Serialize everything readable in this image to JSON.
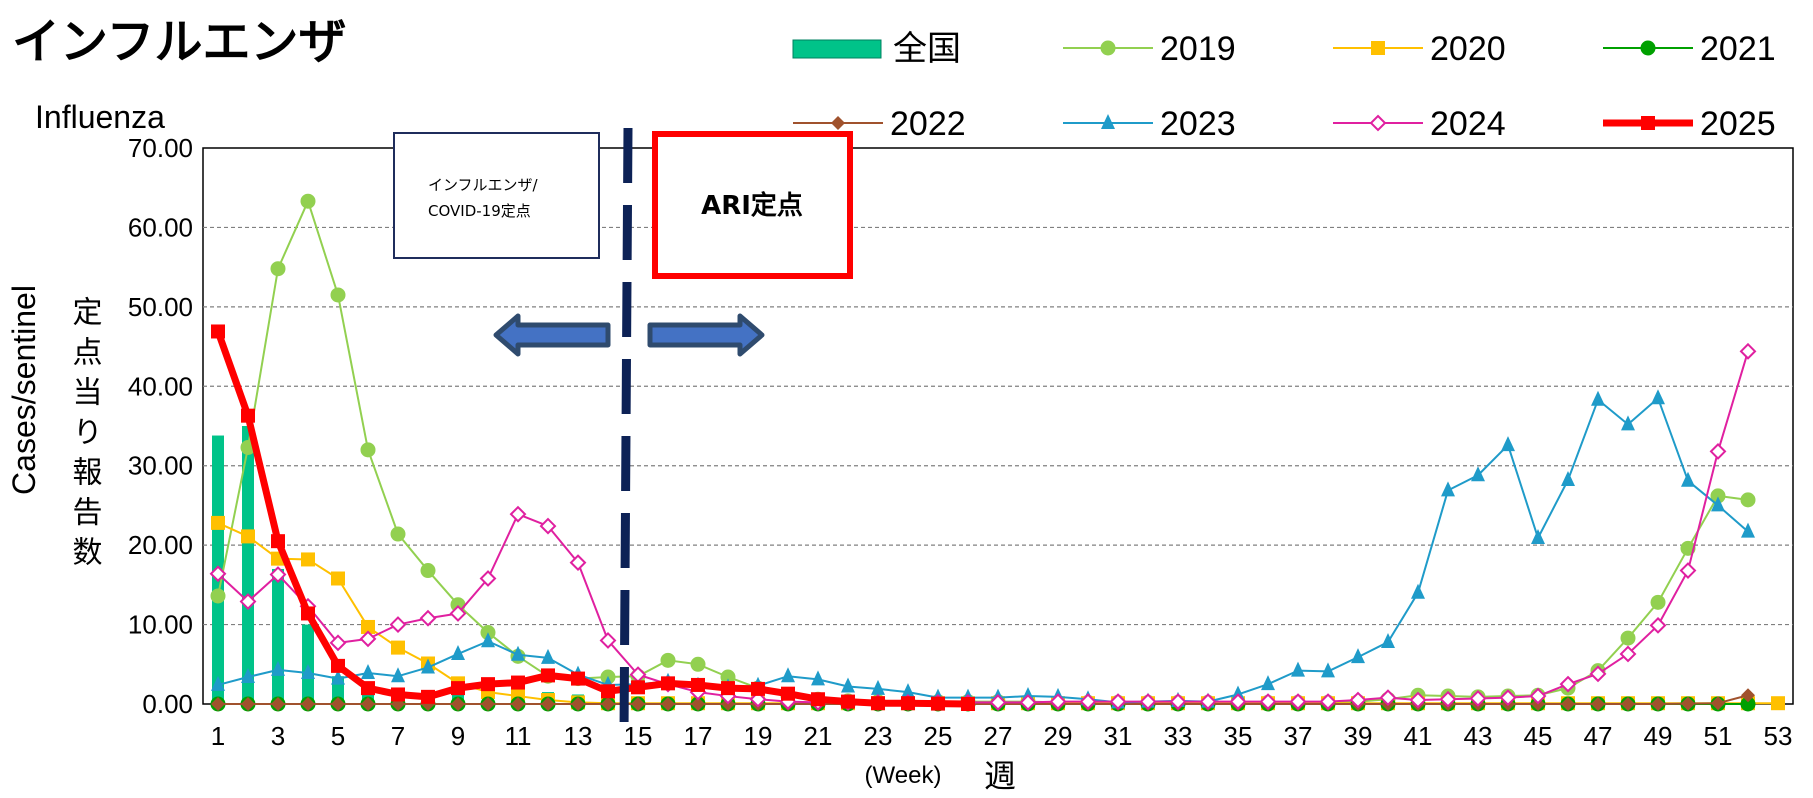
{
  "chart_data": {
    "type": "line",
    "title": "インフルエンザ",
    "subtitle": "Influenza",
    "ylabel_en": "Cases/sentinel",
    "ylabel_jp": "定点当り報告数",
    "xlabel_en": "(Week)",
    "xlabel_jp": "週",
    "ylim": [
      0,
      70
    ],
    "yticks": [
      "0.00",
      "10.00",
      "20.00",
      "30.00",
      "40.00",
      "50.00",
      "60.00",
      "70.00"
    ],
    "xticks": [
      "1",
      "3",
      "5",
      "7",
      "9",
      "11",
      "13",
      "15",
      "17",
      "19",
      "21",
      "23",
      "25",
      "27",
      "29",
      "31",
      "33",
      "35",
      "37",
      "39",
      "41",
      "43",
      "45",
      "47",
      "49",
      "51",
      "53"
    ],
    "grid": "horizontal",
    "legend_position": "top-right",
    "annotations": {
      "left_box": {
        "line1": "インフルエンザ/",
        "line2": "COVID-19定点"
      },
      "right_box": "ARI定点",
      "divider_week": 14.5
    },
    "bar_series": {
      "name": "全国",
      "color": "#00c389",
      "values": [
        33.8,
        35.0,
        17.0,
        10.0,
        3.5,
        2.0,
        1.5,
        1.5,
        1.5,
        1.5,
        1.5,
        1.5,
        1.2,
        1.0
      ]
    },
    "series": [
      {
        "name": "2019",
        "color": "#92d050",
        "marker": "circle",
        "values": [
          13.6,
          32.3,
          54.8,
          63.3,
          51.5,
          32.0,
          21.4,
          16.8,
          12.5,
          9.0,
          6.0,
          3.5,
          3.2,
          3.4,
          3.5,
          5.5,
          5.0,
          3.4,
          2.0,
          1.0,
          0.6,
          0.4,
          0.3,
          0.3,
          0.3,
          0.3,
          0.3,
          0.3,
          0.2,
          0.2,
          0.2,
          0.2,
          0.2,
          0.2,
          0.2,
          0.2,
          0.2,
          0.2,
          0.3,
          0.6,
          1.1,
          1.0,
          0.9,
          1.0,
          1.1,
          2.0,
          4.2,
          8.3,
          12.8,
          19.6,
          26.2,
          25.7
        ]
      },
      {
        "name": "2020",
        "color": "#ffc000",
        "marker": "square",
        "values": [
          22.8,
          21.1,
          18.3,
          18.2,
          15.8,
          9.7,
          7.1,
          5.1,
          2.6,
          1.5,
          1.0,
          0.5,
          0.2,
          0.1,
          0.1,
          0.1,
          0.1,
          0.1,
          0.1,
          0.1,
          0.1,
          0.1,
          0.1,
          0.1,
          0.1,
          0.1,
          0.1,
          0.1,
          0.1,
          0.1,
          0.1,
          0.1,
          0.1,
          0.1,
          0.1,
          0.1,
          0.1,
          0.1,
          0.1,
          0.1,
          0.1,
          0.1,
          0.1,
          0.1,
          0.1,
          0.1,
          0.1,
          0.1,
          0.1,
          0.1,
          0.1,
          0.1,
          0.1
        ]
      },
      {
        "name": "2021",
        "color": "#00a000",
        "marker": "circle",
        "values": [
          0,
          0,
          0,
          0,
          0,
          0,
          0,
          0,
          0,
          0,
          0,
          0,
          0,
          0,
          0,
          0,
          0,
          0,
          0,
          0,
          0,
          0,
          0,
          0,
          0,
          0,
          0,
          0,
          0,
          0,
          0,
          0,
          0,
          0,
          0,
          0,
          0,
          0,
          0,
          0,
          0,
          0,
          0,
          0,
          0,
          0,
          0,
          0,
          0,
          0,
          0,
          0
        ]
      },
      {
        "name": "2022",
        "color": "#a0522d",
        "marker": "diamond",
        "values": [
          0,
          0,
          0,
          0,
          0,
          0,
          0,
          0,
          0,
          0,
          0,
          0,
          0,
          0,
          0,
          0,
          0,
          0,
          0,
          0,
          0,
          0,
          0,
          0,
          0,
          0,
          0,
          0,
          0,
          0,
          0,
          0,
          0,
          0,
          0,
          0,
          0,
          0,
          0,
          0,
          0,
          0,
          0,
          0,
          0,
          0,
          0,
          0,
          0,
          0.05,
          0.1,
          1.1
        ]
      },
      {
        "name": "2023",
        "color": "#1f9bc9",
        "marker": "triangle",
        "values": [
          2.4,
          3.4,
          4.3,
          3.9,
          3.2,
          3.9,
          3.5,
          4.6,
          6.3,
          7.9,
          6.2,
          5.8,
          3.7,
          2.4,
          2.5,
          2.8,
          2.3,
          2.1,
          2.3,
          3.5,
          3.1,
          2.2,
          1.9,
          1.5,
          0.8,
          0.8,
          0.8,
          1.0,
          0.9,
          0.6,
          0.2,
          0.3,
          0.4,
          0.3,
          1.2,
          2.5,
          4.2,
          4.1,
          5.9,
          7.8,
          14.0,
          26.9,
          28.8,
          32.6,
          20.9,
          28.2,
          38.3,
          35.2,
          38.5,
          28.1,
          25.0,
          21.7
        ]
      },
      {
        "name": "2024",
        "color": "#e020a0",
        "marker": "diamond-open",
        "values": [
          16.4,
          12.9,
          16.3,
          12.3,
          7.7,
          8.2,
          10.0,
          10.8,
          11.4,
          15.8,
          23.9,
          22.4,
          17.8,
          8.0,
          3.7,
          2.5,
          1.5,
          1.0,
          0.6,
          0.3,
          0.2,
          0.2,
          0.2,
          0.2,
          0.2,
          0.2,
          0.2,
          0.2,
          0.3,
          0.3,
          0.3,
          0.3,
          0.3,
          0.3,
          0.3,
          0.3,
          0.3,
          0.3,
          0.5,
          0.8,
          0.5,
          0.6,
          0.7,
          0.8,
          1.0,
          2.5,
          3.8,
          6.3,
          9.9,
          16.8,
          31.8,
          44.4
        ]
      },
      {
        "name": "2025",
        "color": "#ff0000",
        "marker": "square",
        "values": [
          46.9,
          36.3,
          20.5,
          11.4,
          4.8,
          2.0,
          1.2,
          0.9,
          2.0,
          2.5,
          2.7,
          3.6,
          3.2,
          1.6,
          2.1,
          2.6,
          2.4,
          2.0,
          1.9,
          1.3,
          0.6,
          0.3,
          0.1,
          0.1,
          0.05,
          0.0
        ]
      }
    ]
  }
}
